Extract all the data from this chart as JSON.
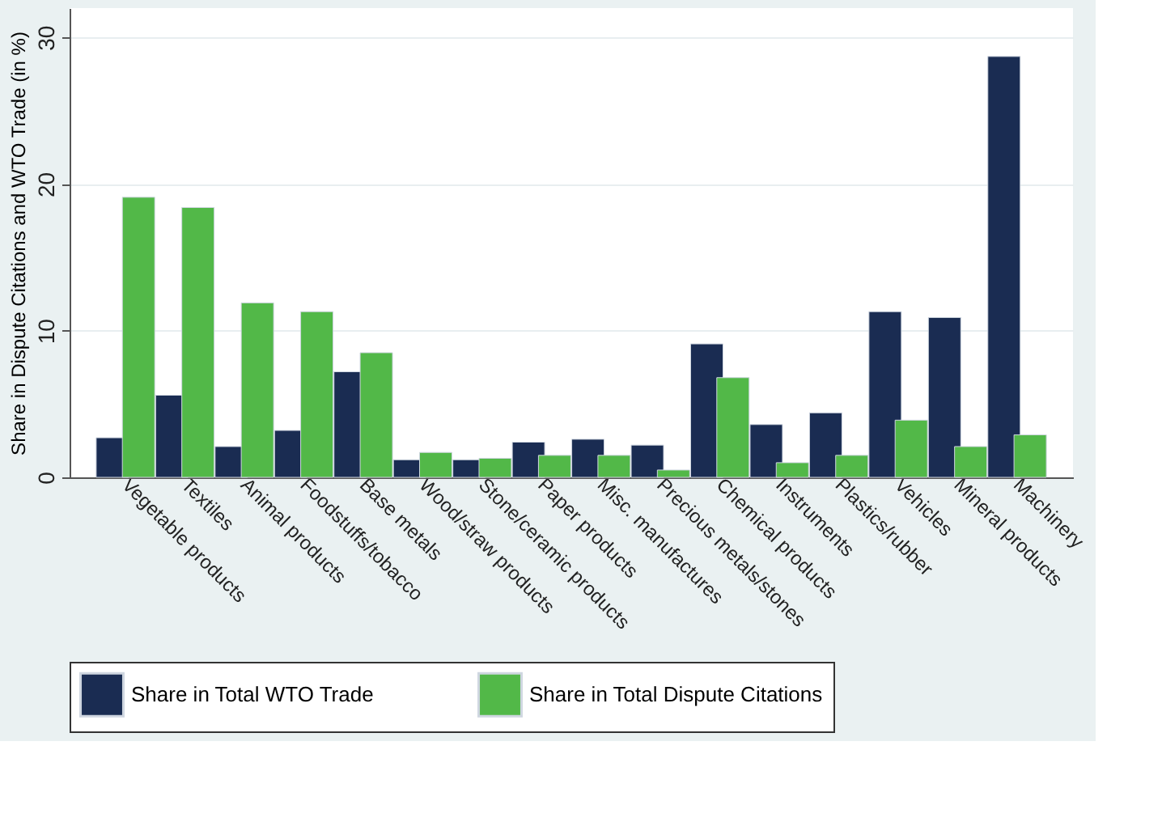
{
  "chart_data": {
    "type": "bar",
    "ylabel": "Share in Dispute Citations and WTO Trade (in %)",
    "categories": [
      "Vegetable products",
      "Textiles",
      "Animal products",
      "Foodstuffs/tobacco",
      "Base metals",
      "Wood/straw products",
      "Stone/ceramic products",
      "Paper products",
      "Misc. manufactures",
      "Precious metals/stones",
      "Chemical products",
      "Instruments",
      "Plastics/rubber",
      "Vehicles",
      "Mineral products",
      "Machinery"
    ],
    "series": [
      {
        "name": "Share in Total WTO Trade",
        "color": "#1a2c52",
        "values": [
          2.7,
          5.6,
          2.1,
          3.2,
          7.2,
          1.2,
          1.2,
          2.4,
          2.6,
          2.2,
          9.1,
          3.6,
          4.4,
          11.3,
          10.9,
          28.7
        ]
      },
      {
        "name": "Share in Total Dispute Citations",
        "color": "#52b848",
        "values": [
          19.1,
          18.4,
          11.9,
          11.3,
          8.5,
          1.7,
          1.3,
          1.5,
          1.5,
          0.5,
          6.8,
          1.0,
          1.5,
          3.9,
          2.1,
          2.9
        ]
      }
    ],
    "ylim": [
      0,
      32
    ],
    "yticks": [
      0,
      10,
      20,
      30
    ],
    "grid": "y",
    "legend": "bottom"
  }
}
